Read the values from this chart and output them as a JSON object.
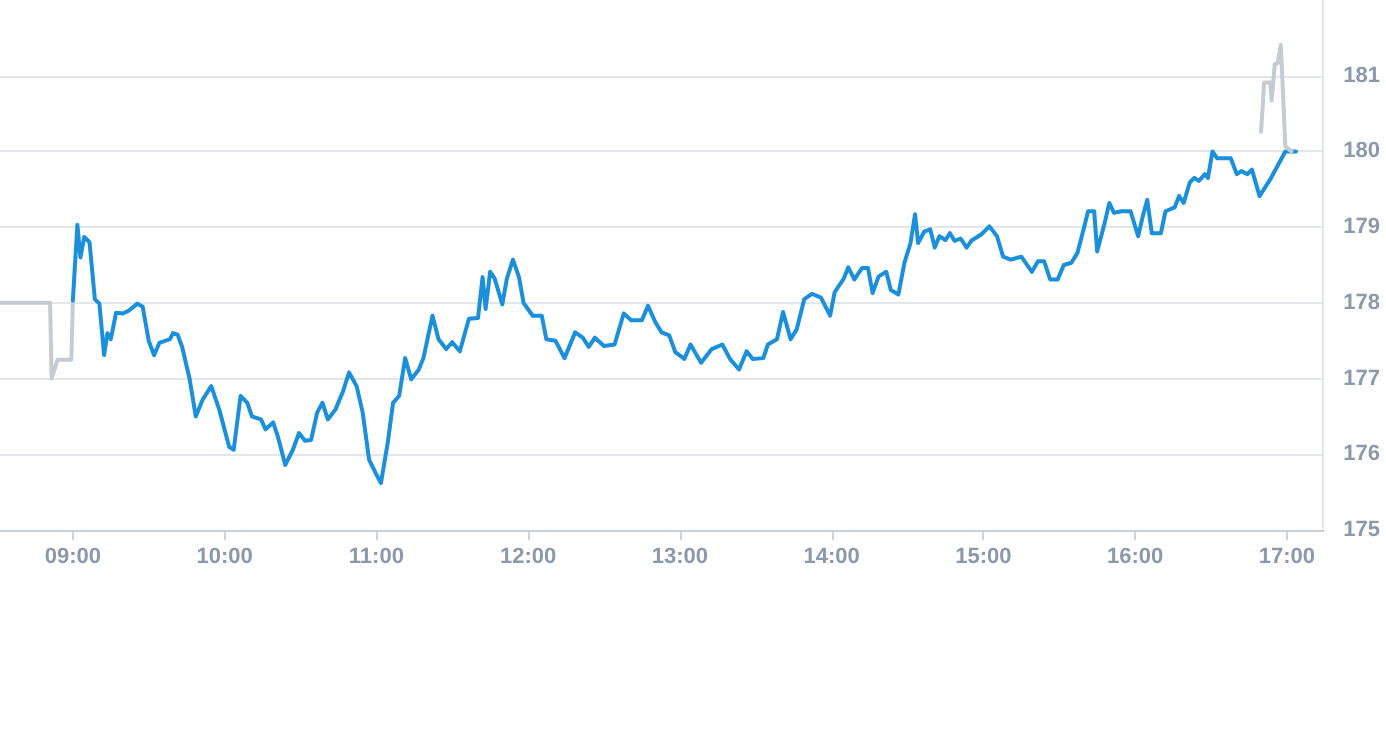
{
  "chart_data": {
    "type": "line",
    "marker": "none",
    "line_style": "solid",
    "grid": "y",
    "xlim": [
      8.52,
      17.24
    ],
    "ylim": [
      175,
      182
    ],
    "xticks": [
      {
        "value": 9,
        "label": "09:00"
      },
      {
        "value": 10,
        "label": "10:00"
      },
      {
        "value": 11,
        "label": "11:00"
      },
      {
        "value": 12,
        "label": "12:00"
      },
      {
        "value": 13,
        "label": "13:00"
      },
      {
        "value": 14,
        "label": "14:00"
      },
      {
        "value": 15,
        "label": "15:00"
      },
      {
        "value": 16,
        "label": "16:00"
      },
      {
        "value": 17,
        "label": "17:00"
      }
    ],
    "yticks": [
      175,
      176,
      177,
      178,
      179,
      180,
      181
    ],
    "series": [
      {
        "color": "#c3ccd3",
        "x": [
          8.52,
          8.85,
          8.86,
          8.9,
          8.99,
          9.0
        ],
        "values": [
          178.0,
          178.0,
          177.0,
          177.25,
          177.25,
          178.0
        ]
      },
      {
        "color": "#1a8fdc",
        "x": [
          9.0,
          9.03,
          9.05,
          9.075,
          9.11,
          9.145,
          9.175,
          9.206,
          9.228,
          9.25,
          9.285,
          9.33,
          9.37,
          9.425,
          9.46,
          9.5,
          9.535,
          9.57,
          9.64,
          9.66,
          9.69,
          9.72,
          9.77,
          9.81,
          9.855,
          9.912,
          9.965,
          10.03,
          10.06,
          10.105,
          10.15,
          10.18,
          10.24,
          10.27,
          10.32,
          10.35,
          10.4,
          10.45,
          10.49,
          10.53,
          10.57,
          10.61,
          10.645,
          10.68,
          10.73,
          10.78,
          10.82,
          10.87,
          10.91,
          10.952,
          10.996,
          11.03,
          11.075,
          11.11,
          11.15,
          11.19,
          11.23,
          11.28,
          11.31,
          11.37,
          11.41,
          11.46,
          11.5,
          11.55,
          11.61,
          11.67,
          11.7,
          11.72,
          11.75,
          11.78,
          11.83,
          11.86,
          11.9,
          11.94,
          11.97,
          12.03,
          12.09,
          12.12,
          12.18,
          12.24,
          12.31,
          12.36,
          12.4,
          12.44,
          12.5,
          12.57,
          12.63,
          12.68,
          12.75,
          12.79,
          12.84,
          12.88,
          12.93,
          12.97,
          13.03,
          13.07,
          13.14,
          13.21,
          13.28,
          13.33,
          13.39,
          13.44,
          13.48,
          13.55,
          13.58,
          13.64,
          13.68,
          13.73,
          13.77,
          13.82,
          13.87,
          13.93,
          13.99,
          14.02,
          14.08,
          14.11,
          14.15,
          14.2,
          14.24,
          14.27,
          14.31,
          14.36,
          14.39,
          14.44,
          14.48,
          14.52,
          14.55,
          14.57,
          14.61,
          14.65,
          14.68,
          14.71,
          14.75,
          14.78,
          14.81,
          14.85,
          14.89,
          14.92,
          14.99,
          15.04,
          15.09,
          15.13,
          15.18,
          15.25,
          15.32,
          15.36,
          15.4,
          15.44,
          15.49,
          15.53,
          15.58,
          15.62,
          15.66,
          15.69,
          15.73,
          15.75,
          15.8,
          15.83,
          15.86,
          15.91,
          15.97,
          16.02,
          16.05,
          16.08,
          16.11,
          16.17,
          16.2,
          16.26,
          16.29,
          16.32,
          16.36,
          16.39,
          16.42,
          16.46,
          16.48,
          16.51,
          16.54,
          16.63,
          16.67,
          16.7,
          16.74,
          16.77,
          16.82,
          16.89,
          16.99,
          17.06
        ],
        "values": [
          178.03,
          179.03,
          178.6,
          178.87,
          178.8,
          178.05,
          177.99,
          177.31,
          177.6,
          177.52,
          177.87,
          177.86,
          177.9,
          177.99,
          177.95,
          177.5,
          177.31,
          177.47,
          177.52,
          177.6,
          177.58,
          177.42,
          176.99,
          176.5,
          176.72,
          176.9,
          176.59,
          176.1,
          176.06,
          176.77,
          176.68,
          176.5,
          176.46,
          176.33,
          176.42,
          176.24,
          175.86,
          176.06,
          176.28,
          176.18,
          176.19,
          176.55,
          176.68,
          176.46,
          176.59,
          176.83,
          177.08,
          176.9,
          176.55,
          175.93,
          175.75,
          175.62,
          176.15,
          176.68,
          176.77,
          177.27,
          176.99,
          177.12,
          177.27,
          177.83,
          177.52,
          177.39,
          177.48,
          177.36,
          177.79,
          177.8,
          178.34,
          177.92,
          178.41,
          178.32,
          177.98,
          178.32,
          178.57,
          178.34,
          178.0,
          177.83,
          177.83,
          177.52,
          177.5,
          177.27,
          177.61,
          177.54,
          177.42,
          177.54,
          177.43,
          177.45,
          177.86,
          177.77,
          177.77,
          177.96,
          177.74,
          177.61,
          177.57,
          177.35,
          177.26,
          177.45,
          177.21,
          177.39,
          177.45,
          177.26,
          177.12,
          177.36,
          177.26,
          177.27,
          177.45,
          177.52,
          177.88,
          177.52,
          177.65,
          178.05,
          178.12,
          178.07,
          177.83,
          178.14,
          178.32,
          178.47,
          178.31,
          178.46,
          178.46,
          178.13,
          178.35,
          178.41,
          178.17,
          178.11,
          178.53,
          178.79,
          179.17,
          178.79,
          178.94,
          178.97,
          178.73,
          178.88,
          178.83,
          178.92,
          178.82,
          178.85,
          178.73,
          178.82,
          178.91,
          179.01,
          178.88,
          178.61,
          178.57,
          178.61,
          178.41,
          178.55,
          178.55,
          178.31,
          178.31,
          178.5,
          178.53,
          178.66,
          178.97,
          179.21,
          179.21,
          178.68,
          179.06,
          179.32,
          179.19,
          179.21,
          179.21,
          178.88,
          179.14,
          179.36,
          178.92,
          178.92,
          179.21,
          179.26,
          179.41,
          179.32,
          179.59,
          179.65,
          179.61,
          179.7,
          179.65,
          180.0,
          179.91,
          179.91,
          179.7,
          179.74,
          179.7,
          179.76,
          179.41,
          179.63,
          180.0,
          180.0
        ]
      },
      {
        "color": "#c3ccd3",
        "x": [
          16.83,
          16.85,
          16.89,
          16.9,
          16.92,
          16.94,
          16.96,
          16.99,
          17.03
        ],
        "values": [
          180.26,
          180.91,
          180.91,
          180.67,
          181.15,
          181.17,
          181.41,
          180.07,
          180.0
        ]
      }
    ]
  }
}
